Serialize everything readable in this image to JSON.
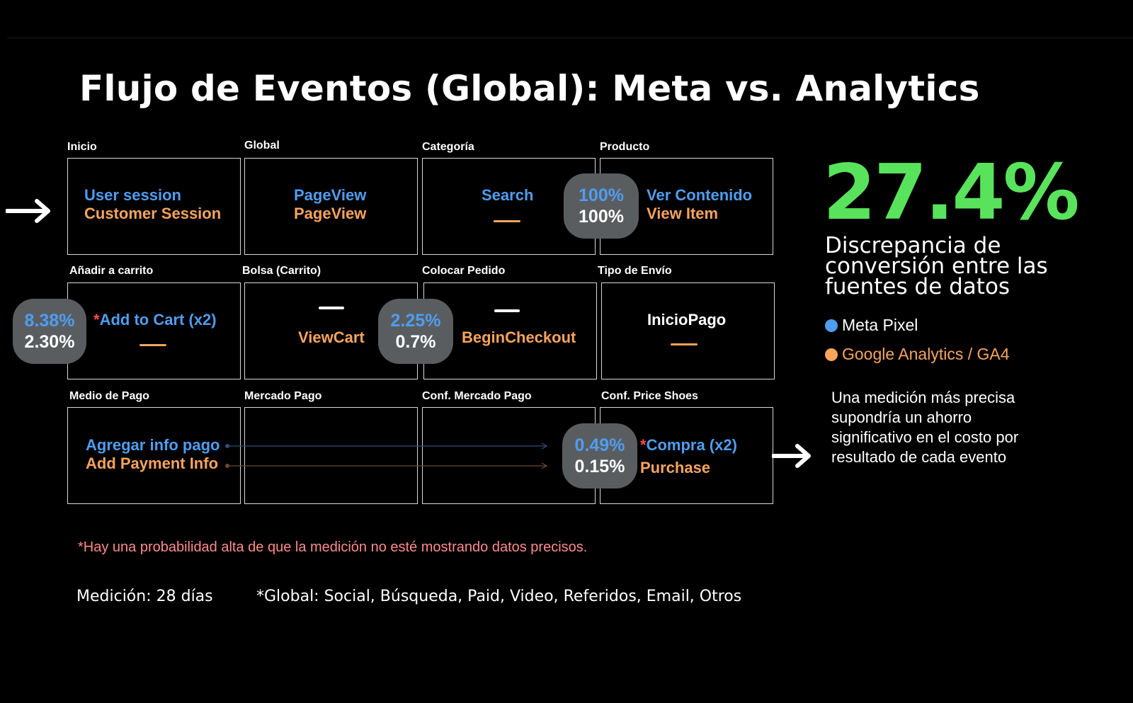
{
  "slide": {
    "title": "Flujo de Eventos (Global): Meta vs. Analytics"
  },
  "steps": [
    {
      "label": "Inicio",
      "meta_event": "User session",
      "ga_event": "Customer Session"
    },
    {
      "label": "Global",
      "meta_event": "PageView",
      "ga_event": "PageView"
    },
    {
      "label": "Categoría",
      "meta_event": "Search",
      "ga_event": null
    },
    {
      "label": "Producto",
      "meta_event": "Ver Contenido",
      "ga_event": "View Item"
    },
    {
      "label": "Añadir a carrito",
      "asterisk": "*",
      "meta_event": "Add to Cart (x2)",
      "ga_event": null
    },
    {
      "label": "Bolsa (Carrito)",
      "meta_event": null,
      "ga_event": "ViewCart"
    },
    {
      "label": "Colocar Pedido",
      "meta_event": null,
      "ga_event": "BeginCheckout"
    },
    {
      "label": "Tipo de Envío",
      "meta_event": "InicioPago",
      "ga_event": null
    },
    {
      "label": "Medio de Pago",
      "meta_event": "Agregar info pago",
      "ga_event": "Add Payment Info"
    },
    {
      "label": "Mercado Pago"
    },
    {
      "label": "Conf. Mercado Pago"
    },
    {
      "label": "Conf. Price Shoes",
      "asterisk": "*",
      "meta_event": "Compra (x2)",
      "ga_event": "Purchase"
    }
  ],
  "rates": [
    {
      "meta": "100%",
      "ga": "100%"
    },
    {
      "meta": "8.38%",
      "ga": "2.30%"
    },
    {
      "meta": "2.25%",
      "ga": "0.7%"
    },
    {
      "meta": "0.49%",
      "ga": "0.15%"
    }
  ],
  "kpi": {
    "value": "27.4%",
    "caption": "Discrepancia de conversión entre las fuentes de datos"
  },
  "legend": [
    {
      "name": "Meta Pixel",
      "color": "#4f9df0"
    },
    {
      "name": "Google Analytics / GA4",
      "color": "#f7a45d"
    }
  ],
  "note": "Una medición más precisa supondría un ahorro significativo en el costo por resultado de cada evento",
  "footnote": "*Hay una probabilidad alta de que la medición no esté mostrando datos precisos.",
  "measurement": "Medición: 28 días",
  "channels": "*Global:  Social, Búsqueda, Paid, Video, Referidos, Email, Otros",
  "colors": {
    "background": "#000000",
    "meta": "#4f9df0",
    "ga": "#f7a45d",
    "kpi": "#59e35c",
    "bubble": "#5a5d60",
    "footnote": "#ff8a8a"
  }
}
